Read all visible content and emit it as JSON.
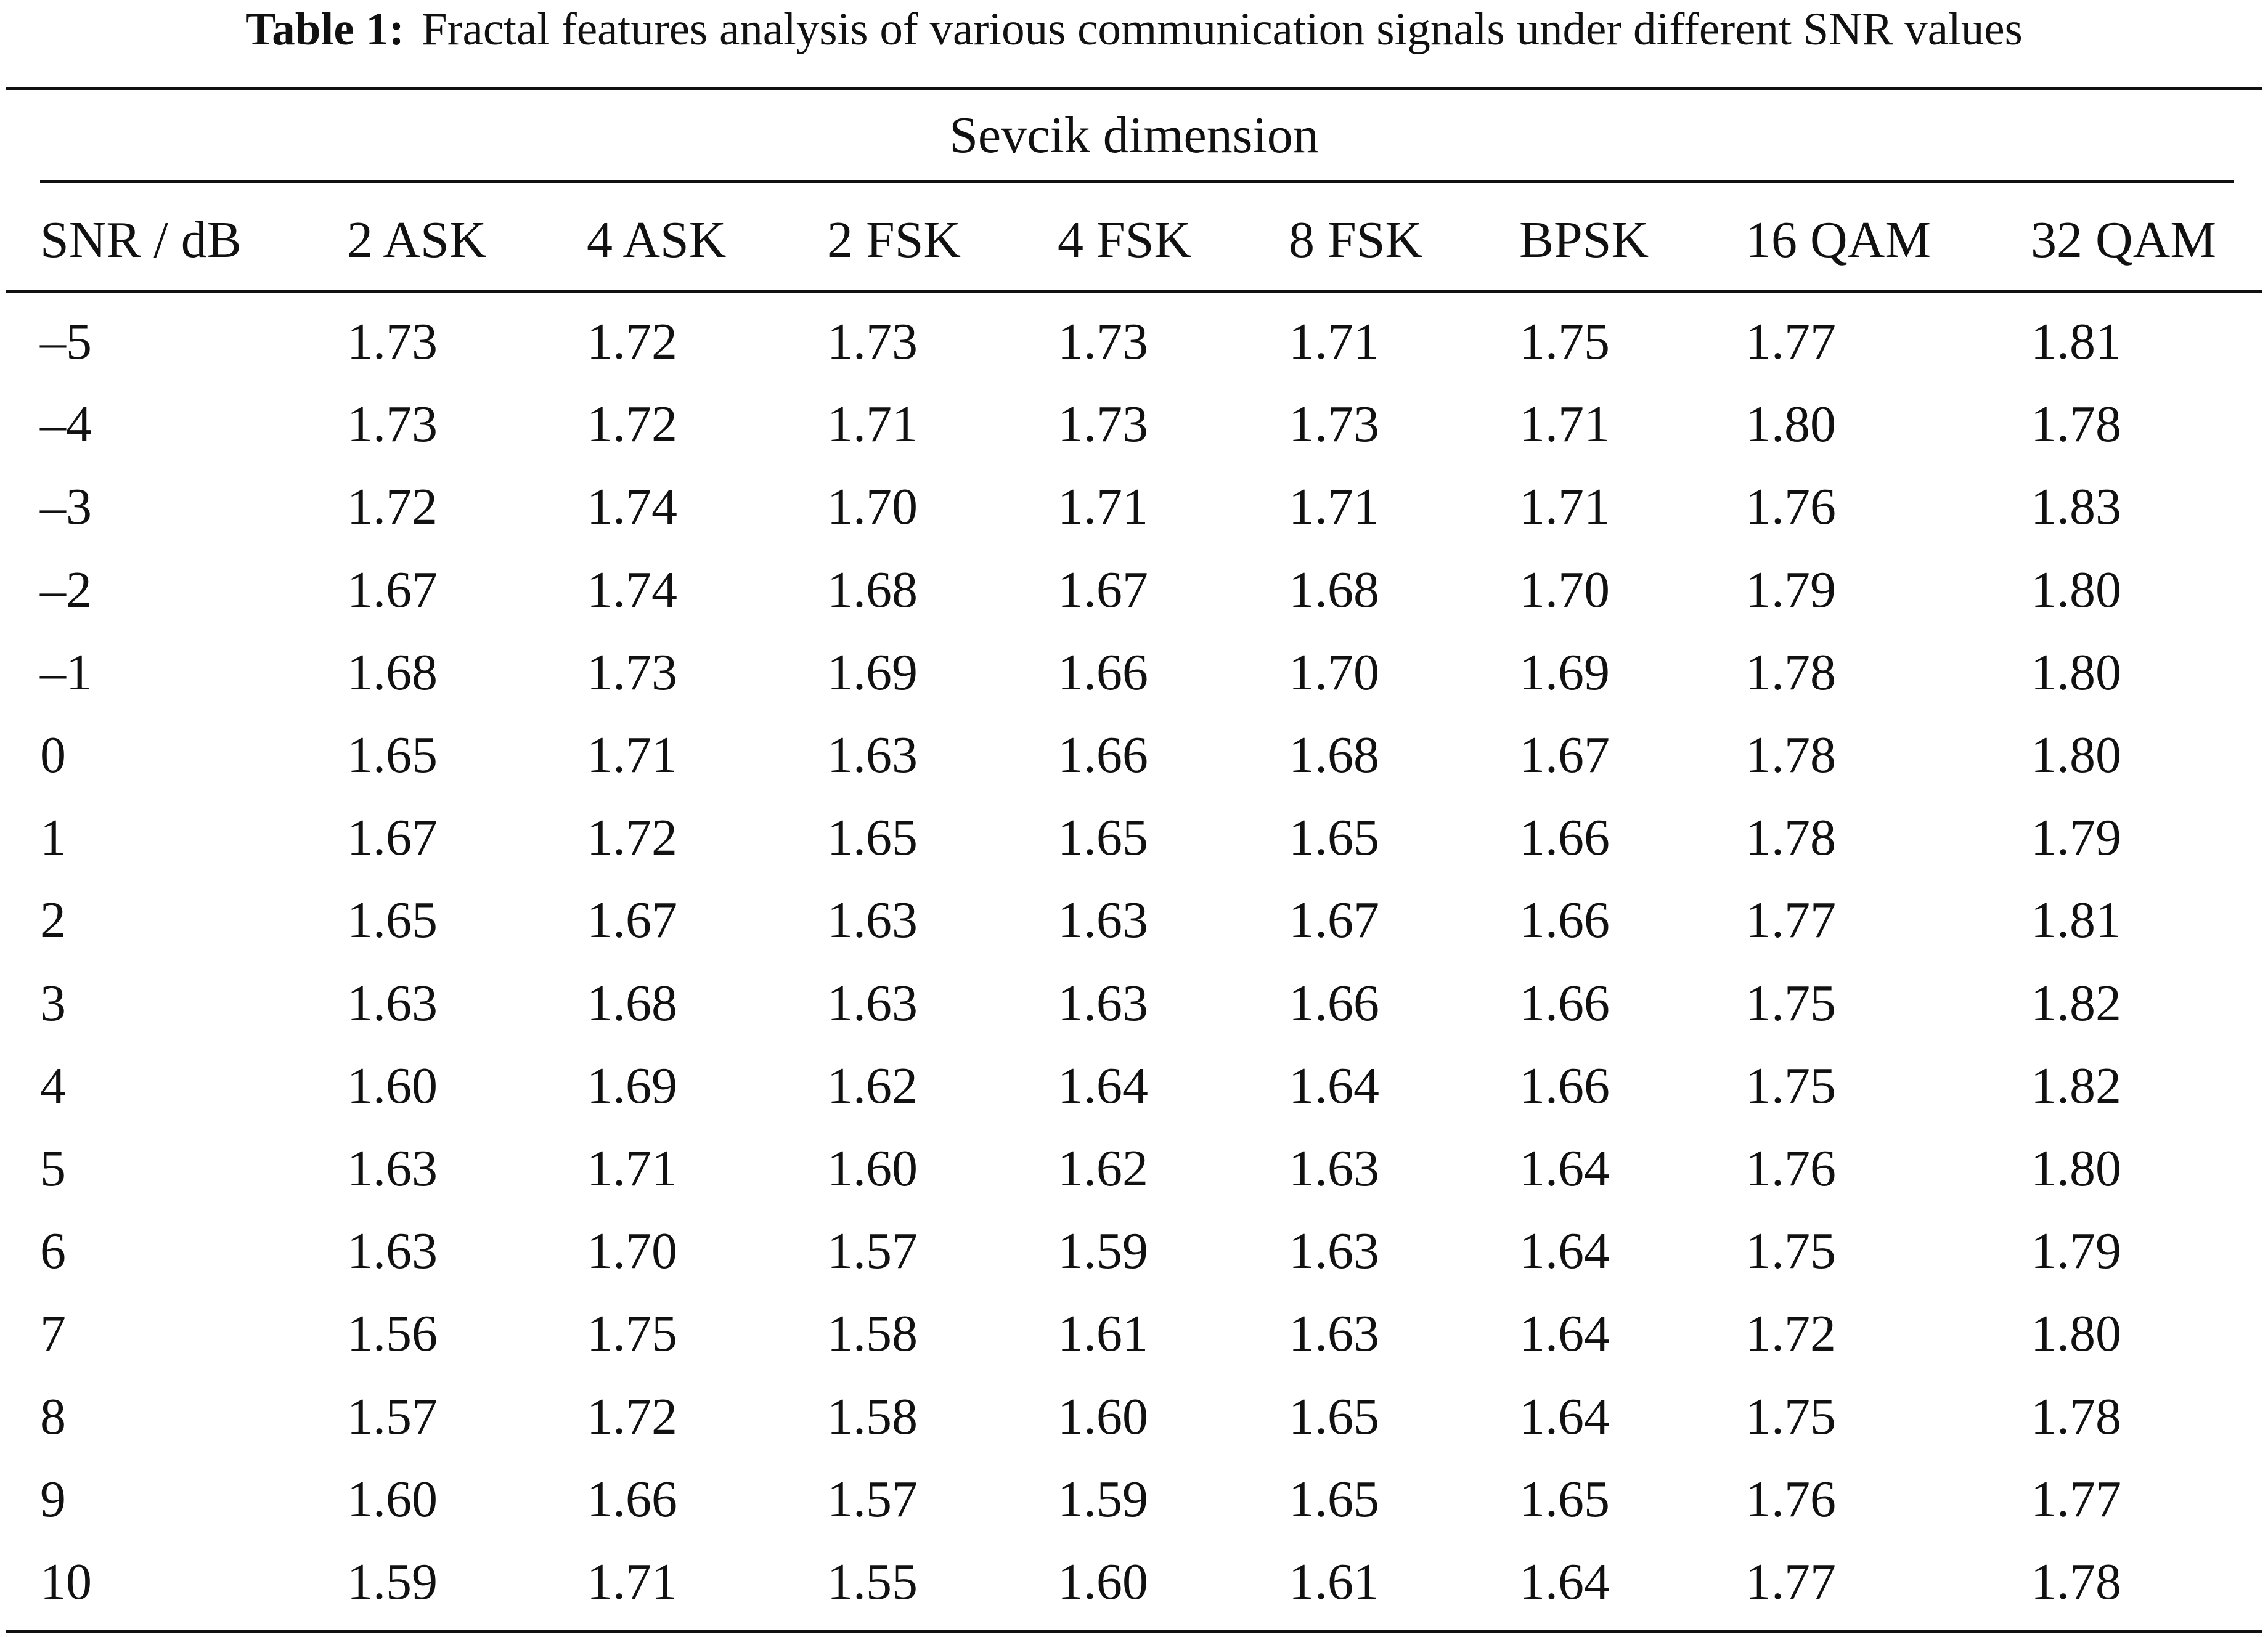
{
  "caption": {
    "label": "Table 1:",
    "text": "Fractal features analysis of various communication signals under different SNR values"
  },
  "table": {
    "group_header": "Sevcik dimension",
    "columns": [
      "SNR / dB",
      "2 ASK",
      "4 ASK",
      "2 FSK",
      "4 FSK",
      "8 FSK",
      "BPSK",
      "16 QAM",
      "32 QAM"
    ],
    "rows": [
      [
        "–5",
        "1.73",
        "1.72",
        "1.73",
        "1.73",
        "1.71",
        "1.75",
        "1.77",
        "1.81"
      ],
      [
        "–4",
        "1.73",
        "1.72",
        "1.71",
        "1.73",
        "1.73",
        "1.71",
        "1.80",
        "1.78"
      ],
      [
        "–3",
        "1.72",
        "1.74",
        "1.70",
        "1.71",
        "1.71",
        "1.71",
        "1.76",
        "1.83"
      ],
      [
        "–2",
        "1.67",
        "1.74",
        "1.68",
        "1.67",
        "1.68",
        "1.70",
        "1.79",
        "1.80"
      ],
      [
        "–1",
        "1.68",
        "1.73",
        "1.69",
        "1.66",
        "1.70",
        "1.69",
        "1.78",
        "1.80"
      ],
      [
        "0",
        "1.65",
        "1.71",
        "1.63",
        "1.66",
        "1.68",
        "1.67",
        "1.78",
        "1.80"
      ],
      [
        "1",
        "1.67",
        "1.72",
        "1.65",
        "1.65",
        "1.65",
        "1.66",
        "1.78",
        "1.79"
      ],
      [
        "2",
        "1.65",
        "1.67",
        "1.63",
        "1.63",
        "1.67",
        "1.66",
        "1.77",
        "1.81"
      ],
      [
        "3",
        "1.63",
        "1.68",
        "1.63",
        "1.63",
        "1.66",
        "1.66",
        "1.75",
        "1.82"
      ],
      [
        "4",
        "1.60",
        "1.69",
        "1.62",
        "1.64",
        "1.64",
        "1.66",
        "1.75",
        "1.82"
      ],
      [
        "5",
        "1.63",
        "1.71",
        "1.60",
        "1.62",
        "1.63",
        "1.64",
        "1.76",
        "1.80"
      ],
      [
        "6",
        "1.63",
        "1.70",
        "1.57",
        "1.59",
        "1.63",
        "1.64",
        "1.75",
        "1.79"
      ],
      [
        "7",
        "1.56",
        "1.75",
        "1.58",
        "1.61",
        "1.63",
        "1.64",
        "1.72",
        "1.80"
      ],
      [
        "8",
        "1.57",
        "1.72",
        "1.58",
        "1.60",
        "1.65",
        "1.64",
        "1.75",
        "1.78"
      ],
      [
        "9",
        "1.60",
        "1.66",
        "1.57",
        "1.59",
        "1.65",
        "1.65",
        "1.76",
        "1.77"
      ],
      [
        "10",
        "1.59",
        "1.71",
        "1.55",
        "1.60",
        "1.61",
        "1.64",
        "1.77",
        "1.78"
      ]
    ]
  }
}
